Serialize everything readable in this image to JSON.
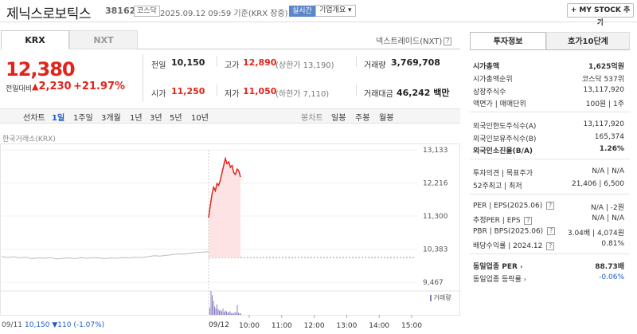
{
  "header": {
    "title": "제닉스로보틱스",
    "code": "381620",
    "market_badge": "코스닥",
    "time": "2025.09.12 09:59 기준(KRX 장중)",
    "live_label": "실시간",
    "info_label": "기업개요",
    "mystock_label": "+ MY STOCK 추가"
  },
  "tabs": {
    "krx": "KRX",
    "nxt": "NXT"
  },
  "nxt_link": "넥스트레이드(NXT)",
  "quote": {
    "price": "12,380",
    "change_label": "전일대비",
    "change_arrow": "▲",
    "change": "2,230",
    "change_pct": "+21.97%",
    "prev_label": "전일",
    "prev": "10,150",
    "high_label": "고가",
    "high": "12,890",
    "upper_limit": "(상한가 13,190)",
    "volume_label": "거래량",
    "volume": "3,769,708",
    "open_label": "시가",
    "open": "11,250",
    "low_label": "저가",
    "low": "11,050",
    "lower_limit": "(하한가 7,110)",
    "amount_label": "거래대금",
    "amount": "46,242 백만"
  },
  "periods": [
    "선차트",
    "1일",
    "1주일",
    "3개월",
    "1년",
    "3년",
    "5년",
    "10년"
  ],
  "candle_periods": [
    "봉차트",
    "일봉",
    "주봉",
    "월봉"
  ],
  "chart": {
    "source": "한국거래소(KRX)",
    "volume_legend": "거래량",
    "prev_info": "09/11",
    "prev_info_value": "10,150 ▼110 (-1.07%)",
    "date_label": "09/12"
  },
  "chart_data": {
    "type": "line",
    "y_ticks": [
      "13,133",
      "12,216",
      "11,300",
      "10,383",
      "9,467"
    ],
    "x_ticks": [
      "10:00",
      "11:00",
      "12:00",
      "13:00",
      "14:00",
      "15:00"
    ],
    "ylim": [
      9467,
      13133
    ],
    "reference_price": 10150,
    "prev_day_points": [
      10180,
      10150,
      10170,
      10140,
      10160,
      10120,
      10140,
      10130,
      10150,
      10110,
      10130,
      10140,
      10120,
      10150,
      10130,
      10150,
      10140,
      10120,
      10140,
      10130,
      10150,
      10140,
      10160,
      10150,
      10170,
      10200,
      10190,
      10210,
      10230,
      10250,
      10240,
      10270,
      10290,
      10300,
      10310
    ],
    "today_points": [
      11250,
      11600,
      11900,
      12100,
      12000,
      12200,
      12150,
      12300,
      12500,
      12700,
      12890,
      12750,
      12800,
      12650,
      12700,
      12500,
      12450,
      12600,
      12550,
      12380
    ],
    "volume_bars": [
      10,
      34,
      28,
      20,
      12,
      9,
      15,
      8,
      6,
      7,
      5,
      9,
      4,
      6,
      5,
      3,
      4,
      5,
      2,
      3,
      2,
      4,
      3,
      14,
      3,
      2,
      2
    ]
  },
  "info_panel": {
    "tab1": "투자정보",
    "tab2": "호가10단계",
    "market_cap_label": "시가총액",
    "market_cap": "1,625억원",
    "rank_label": "시가총액순위",
    "rank": "코스닥 537위",
    "shares_label": "상장주식수",
    "shares": "13,117,920",
    "par_label": "액면가",
    "par_sep": "매매단위",
    "par": "100원",
    "unit": "1주",
    "foreign_limit_label": "외국인한도주식수(A)",
    "foreign_limit": "13,117,920",
    "foreign_hold_label": "외국인보유주식수(B)",
    "foreign_hold": "165,374",
    "foreign_ratio_label": "외국인소진율(B/A)",
    "foreign_ratio": "1.26%",
    "opinion_label": "투자의견",
    "target_label": "목표주가",
    "opinion": "N/A",
    "target": "N/A",
    "w52_label": "52주최고",
    "w52_low_label": "최저",
    "w52_high": "21,406",
    "w52_low": "6,500",
    "per_label": "PER",
    "eps_label": "EPS(2025.06)",
    "per": "N/A",
    "eps": "-2원",
    "eper_label": "추정PER",
    "eeps_label": "EPS",
    "eper": "N/A",
    "eeps": "N/A",
    "pbr_label": "PBR",
    "bps_label": "BPS(2025.06)",
    "pbr": "3.04배",
    "bps": "4,074원",
    "div_label": "배당수익률",
    "div_date": "2024.12",
    "div": "0.81%",
    "sector_per_label": "동일업종 PER",
    "sector_per": "88.73배",
    "sector_chg_label": "동일업종 등락률",
    "sector_chg": "-0.06%"
  }
}
